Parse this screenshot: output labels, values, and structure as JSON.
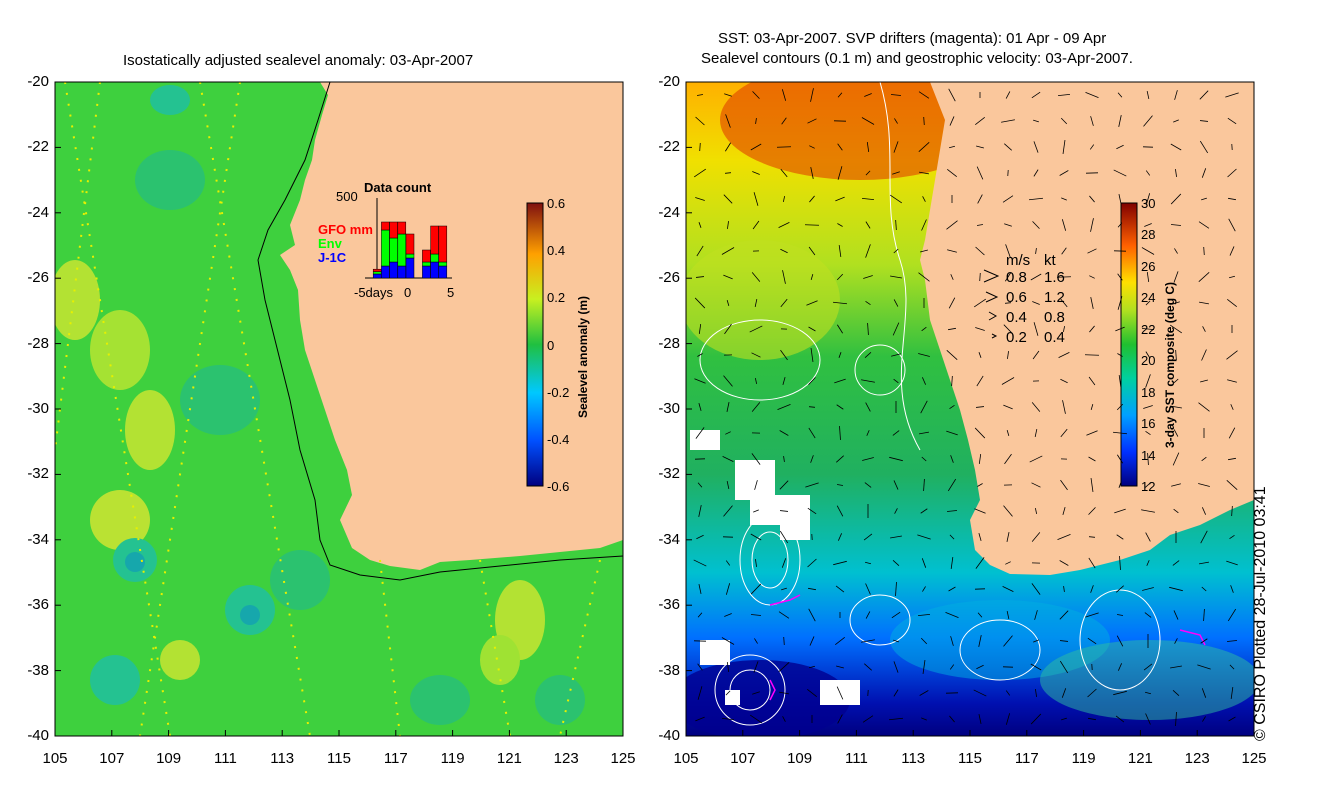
{
  "left_panel": {
    "title": "Isostatically adjusted sealevel anomaly: 03-Apr-2007",
    "lat_ticks": [
      "-20",
      "-22",
      "-24",
      "-26",
      "-28",
      "-30",
      "-32",
      "-34",
      "-36",
      "-38",
      "-40"
    ],
    "lon_ticks": [
      "105",
      "107",
      "109",
      "111",
      "113",
      "115",
      "117",
      "119",
      "121",
      "123",
      "125"
    ],
    "colorbar": {
      "label": "Sealevel anomaly (m)",
      "ticks": [
        "0.6",
        "0.4",
        "0.2",
        "0",
        "-0.2",
        "-0.4",
        "-0.6"
      ]
    },
    "data_count": {
      "title": "Data count",
      "max_label": "500",
      "x_ticks": [
        "-5days",
        "0",
        "5"
      ],
      "legend": [
        {
          "label": "GFO mm",
          "color": "#ff0000"
        },
        {
          "label": "Env",
          "color": "#00ff00"
        },
        {
          "label": "J-1C",
          "color": "#0000ff"
        }
      ],
      "bars": [
        {
          "day": -4,
          "blue": 0.05,
          "green": 0.03,
          "red": 0.03
        },
        {
          "day": -3,
          "blue": 0.15,
          "green": 0.45,
          "red": 0.1
        },
        {
          "day": -2,
          "blue": 0.2,
          "green": 0.3,
          "red": 0.2
        },
        {
          "day": -1,
          "blue": 0.15,
          "green": 0.4,
          "red": 0.15
        },
        {
          "day": 0,
          "blue": 0.25,
          "green": 0.05,
          "red": 0.25
        },
        {
          "day": 2,
          "blue": 0.15,
          "green": 0.05,
          "red": 0.15
        },
        {
          "day": 3,
          "blue": 0.2,
          "green": 0.1,
          "red": 0.35
        },
        {
          "day": 4,
          "blue": 0.15,
          "green": 0.05,
          "red": 0.45
        }
      ]
    },
    "colors": {
      "land": "#fac79c",
      "sea_mid": "#3ed03e",
      "sea_hi": "#c8e632",
      "sea_lo": "#20b070"
    }
  },
  "right_panel": {
    "title_line1": "SST: 03-Apr-2007. SVP drifters (magenta): 01 Apr - 09 Apr",
    "title_line2": "Sealevel contours (0.1 m) and geostrophic velocity: 03-Apr-2007.",
    "lat_ticks": [
      "-20",
      "-22",
      "-24",
      "-26",
      "-28",
      "-30",
      "-32",
      "-34",
      "-36",
      "-38",
      "-40"
    ],
    "lon_ticks": [
      "105",
      "107",
      "109",
      "111",
      "113",
      "115",
      "117",
      "119",
      "121",
      "123",
      "125"
    ],
    "colorbar": {
      "label": "3-day SST composite (deg C)",
      "ticks": [
        "30",
        "28",
        "26",
        "24",
        "22",
        "20",
        "18",
        "16",
        "14",
        "12"
      ]
    },
    "velocity_legend": {
      "header_ms": "m/s",
      "header_kt": "kt",
      "rows": [
        {
          "ms": "0.8",
          "kt": "1.6"
        },
        {
          "ms": "0.6",
          "kt": "1.2"
        },
        {
          "ms": "0.4",
          "kt": "0.8"
        },
        {
          "ms": "0.2",
          "kt": "0.4"
        }
      ]
    },
    "colors": {
      "land": "#fac79c",
      "drifter": "#ff00ff"
    }
  },
  "copyright": "© CSIRO Plotted 28-Jul-2010 03:41"
}
